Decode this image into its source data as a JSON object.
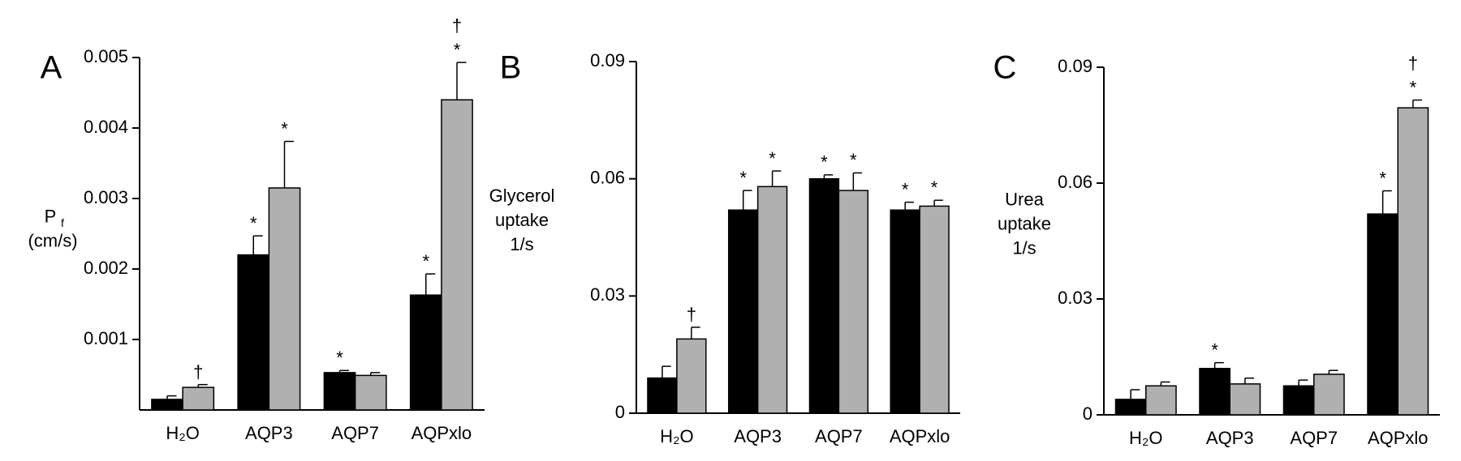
{
  "chart_data": [
    {
      "type": "bar",
      "panel": "A",
      "ylabel": {
        "main": "P",
        "sub": "f",
        "unit": "(cm/s)"
      },
      "categories": [
        "H₂O",
        "AQP3",
        "AQP7",
        "AQPxlo"
      ],
      "ylim": [
        0,
        0.005
      ],
      "yticks": [
        0.001,
        0.002,
        0.003,
        0.004,
        0.005
      ],
      "series": [
        {
          "color": "#000000",
          "values": [
            0.00015,
            0.0022,
            0.00053,
            0.00163
          ],
          "errors": [
            5e-05,
            0.00027,
            3e-05,
            0.0003
          ],
          "annotations": [
            [],
            [
              "*"
            ],
            [
              "*"
            ],
            [
              "*"
            ]
          ]
        },
        {
          "color": "#b0b0b0",
          "values": [
            0.00032,
            0.00315,
            0.00049,
            0.0044
          ],
          "errors": [
            4e-05,
            0.00066,
            4e-05,
            0.00053
          ],
          "annotations": [
            [
              "†"
            ],
            [
              "*"
            ],
            [],
            [
              "*",
              "†"
            ]
          ]
        }
      ]
    },
    {
      "type": "bar",
      "panel": "B",
      "ylabel": {
        "lines": [
          "Glycerol",
          "uptake",
          "1/s"
        ]
      },
      "categories": [
        "H₂O",
        "AQP3",
        "AQP7",
        "AQPxlo"
      ],
      "ylim": [
        0,
        0.09
      ],
      "yticks": [
        0,
        0.03,
        0.06,
        0.09
      ],
      "series": [
        {
          "color": "#000000",
          "values": [
            0.009,
            0.052,
            0.06,
            0.052
          ],
          "errors": [
            0.003,
            0.005,
            0.001,
            0.002
          ],
          "annotations": [
            [],
            [
              "*"
            ],
            [
              "*"
            ],
            [
              "*"
            ]
          ]
        },
        {
          "color": "#b0b0b0",
          "values": [
            0.019,
            0.058,
            0.057,
            0.053
          ],
          "errors": [
            0.003,
            0.004,
            0.0045,
            0.0015
          ],
          "annotations": [
            [
              "†"
            ],
            [
              "*"
            ],
            [
              "*"
            ],
            [
              "*"
            ]
          ]
        }
      ]
    },
    {
      "type": "bar",
      "panel": "C",
      "ylabel": {
        "lines": [
          "Urea",
          "uptake",
          "1/s"
        ]
      },
      "categories": [
        "H₂O",
        "AQP3",
        "AQP7",
        "AQPxlo"
      ],
      "ylim": [
        0,
        0.09
      ],
      "yticks": [
        0,
        0.03,
        0.06,
        0.09
      ],
      "series": [
        {
          "color": "#000000",
          "values": [
            0.004,
            0.012,
            0.0075,
            0.052
          ],
          "errors": [
            0.0025,
            0.0015,
            0.0015,
            0.006
          ],
          "annotations": [
            [],
            [
              "*"
            ],
            [],
            [
              "*"
            ]
          ]
        },
        {
          "color": "#b0b0b0",
          "values": [
            0.0075,
            0.008,
            0.0105,
            0.0795
          ],
          "errors": [
            0.001,
            0.0015,
            0.001,
            0.002
          ],
          "annotations": [
            [],
            [],
            [],
            [
              "*",
              "†"
            ]
          ]
        }
      ]
    }
  ]
}
